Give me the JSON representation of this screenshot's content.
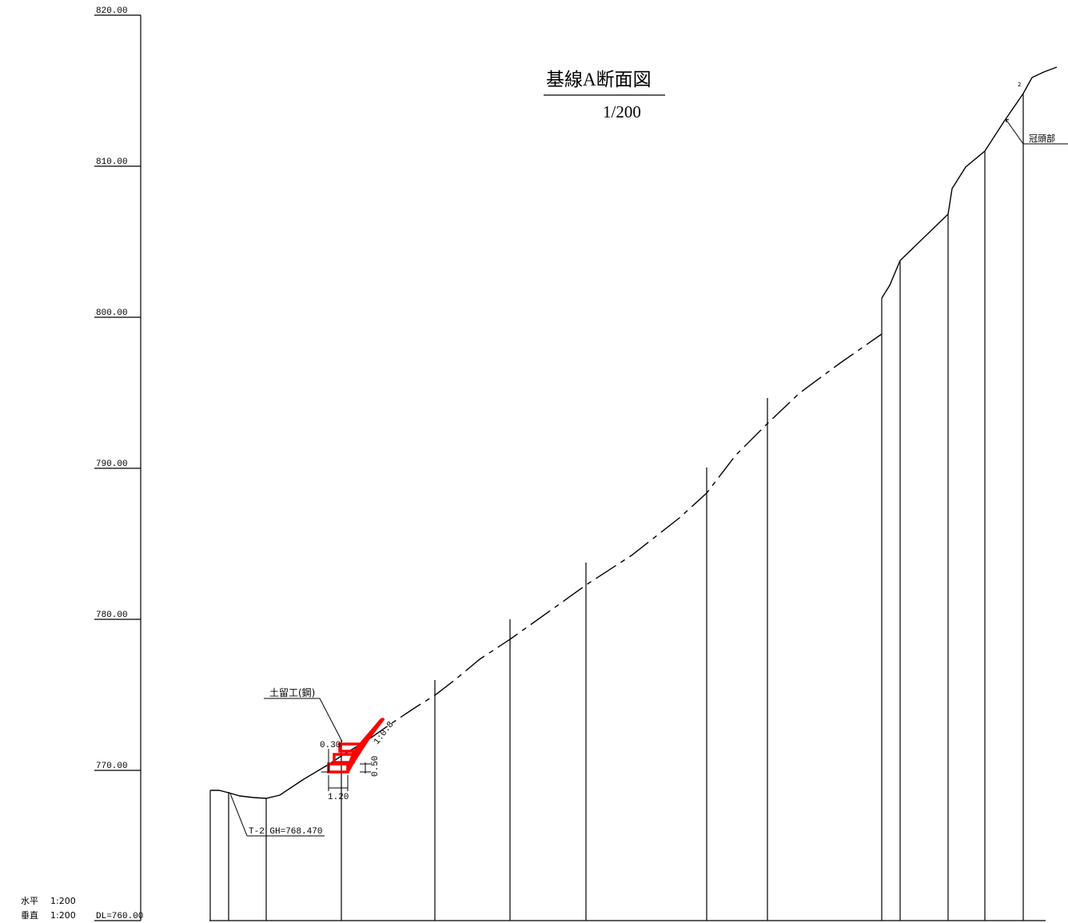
{
  "drawing": {
    "title": "基線A断面図",
    "scale": "1/200",
    "horizontal_scale": {
      "label": "水平",
      "value": "1:200"
    },
    "vertical_scale": {
      "label": "垂直",
      "value": "1:200"
    },
    "datum_label": "DL=760.00",
    "elevation_labels": [
      "820.00",
      "810.00",
      "800.00",
      "790.00",
      "780.00",
      "770.00"
    ],
    "annotations": {
      "retaining_work": "土留工(鋼)",
      "ground_point": "T-2 GH=768.470",
      "crown": "冠頭部",
      "point_number": "2",
      "slope_ratio": "1:0.8",
      "dim_width_top": "0.30",
      "dim_height": "0.50",
      "dim_width_base": "1.20"
    }
  },
  "colors": {
    "line": "#000000",
    "retaining_structure": "#ff0000"
  }
}
